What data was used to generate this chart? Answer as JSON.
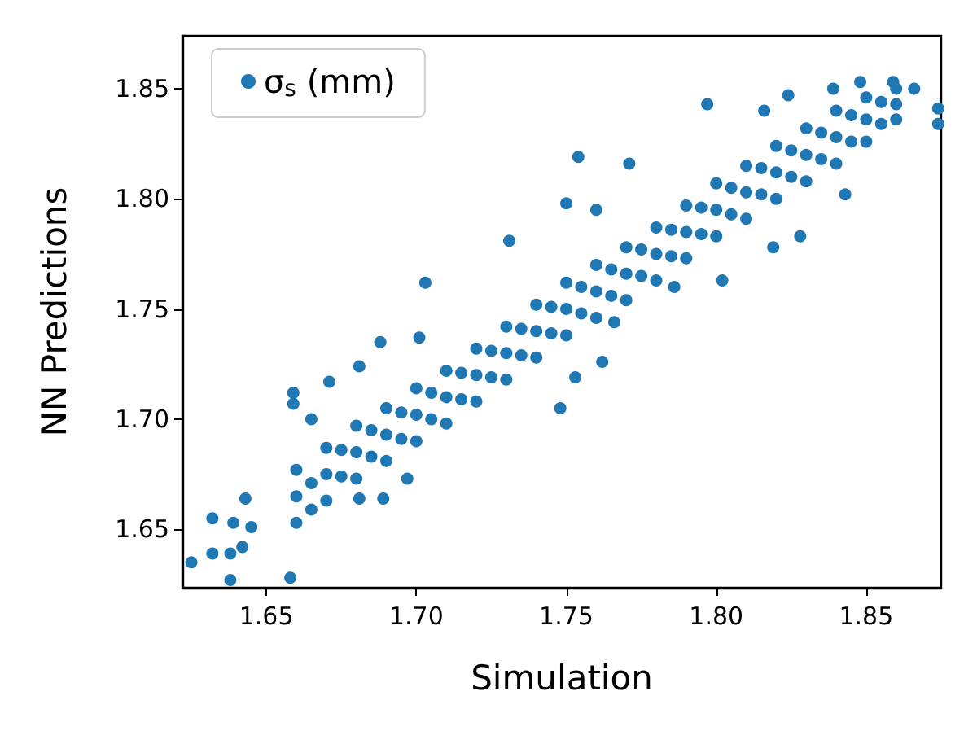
{
  "chart_data": {
    "type": "scatter",
    "xlabel": "Simulation",
    "ylabel": "NN Predictions",
    "xlim": [
      1.622,
      1.875
    ],
    "xticks": [
      1.65,
      {
        "value": 1.7,
        "label": "1.70"
      },
      1.75,
      {
        "value": 1.8,
        "label": "1.80"
      },
      1.85
    ],
    "ylim": [
      1.6235,
      1.874
    ],
    "yticks": [
      1.65,
      {
        "value": 1.7,
        "label": "1.70"
      },
      1.75,
      {
        "value": 1.8,
        "label": "1.80"
      },
      1.85
    ],
    "grid": false,
    "legend": "top left",
    "marker": "circle",
    "series": [
      {
        "name": "σ$_{s}$ (mm)",
        "color": "#1f77b4",
        "x": [
          1.66,
          1.66,
          1.66,
          1.665,
          1.665,
          1.67,
          1.67,
          1.67,
          1.675,
          1.675,
          1.68,
          1.68,
          1.68,
          1.685,
          1.685,
          1.69,
          1.69,
          1.69,
          1.695,
          1.695,
          1.7,
          1.7,
          1.7,
          1.705,
          1.705,
          1.71,
          1.71,
          1.71,
          1.715,
          1.715,
          1.72,
          1.72,
          1.72,
          1.725,
          1.725,
          1.73,
          1.73,
          1.73,
          1.735,
          1.735,
          1.74,
          1.74,
          1.74,
          1.745,
          1.745,
          1.75,
          1.75,
          1.75,
          1.755,
          1.755,
          1.76,
          1.76,
          1.76,
          1.765,
          1.765,
          1.77,
          1.77,
          1.77,
          1.775,
          1.775,
          1.78,
          1.78,
          1.78,
          1.785,
          1.785,
          1.79,
          1.79,
          1.79,
          1.795,
          1.795,
          1.8,
          1.8,
          1.8,
          1.805,
          1.805,
          1.81,
          1.81,
          1.81,
          1.815,
          1.815,
          1.82,
          1.82,
          1.82,
          1.825,
          1.825,
          1.83,
          1.83,
          1.83,
          1.835,
          1.835,
          1.84,
          1.84,
          1.84,
          1.845,
          1.845,
          1.85,
          1.85,
          1.85,
          1.855,
          1.855,
          1.86,
          1.86,
          1.86,
          1.625,
          1.632,
          1.632,
          1.638,
          1.638,
          1.642,
          1.658,
          1.639,
          1.659,
          1.659,
          1.665,
          1.703,
          1.748,
          1.689,
          1.697,
          1.681,
          1.671,
          1.681,
          1.688,
          1.701,
          1.645,
          1.643,
          1.762,
          1.753,
          1.766,
          1.786,
          1.802,
          1.754,
          1.75,
          1.797,
          1.843,
          1.828,
          1.819,
          1.874,
          1.874,
          1.866,
          1.859,
          1.848,
          1.839,
          1.824,
          1.816,
          1.771,
          1.76,
          1.731
        ],
        "values": [
          1.665,
          1.677,
          1.653,
          1.671,
          1.659,
          1.675,
          1.687,
          1.663,
          1.686,
          1.674,
          1.685,
          1.697,
          1.673,
          1.695,
          1.683,
          1.693,
          1.705,
          1.681,
          1.703,
          1.691,
          1.702,
          1.714,
          1.69,
          1.712,
          1.7,
          1.71,
          1.722,
          1.698,
          1.721,
          1.709,
          1.72,
          1.732,
          1.708,
          1.731,
          1.719,
          1.73,
          1.742,
          1.718,
          1.741,
          1.729,
          1.74,
          1.752,
          1.728,
          1.751,
          1.739,
          1.75,
          1.762,
          1.738,
          1.76,
          1.748,
          1.758,
          1.77,
          1.746,
          1.768,
          1.756,
          1.766,
          1.778,
          1.754,
          1.777,
          1.765,
          1.775,
          1.787,
          1.763,
          1.786,
          1.774,
          1.785,
          1.797,
          1.773,
          1.796,
          1.784,
          1.795,
          1.807,
          1.783,
          1.805,
          1.793,
          1.803,
          1.815,
          1.791,
          1.814,
          1.802,
          1.812,
          1.824,
          1.8,
          1.822,
          1.81,
          1.82,
          1.832,
          1.808,
          1.83,
          1.818,
          1.828,
          1.84,
          1.816,
          1.838,
          1.826,
          1.836,
          1.846,
          1.826,
          1.844,
          1.834,
          1.843,
          1.85,
          1.836,
          1.635,
          1.639,
          1.655,
          1.627,
          1.639,
          1.642,
          1.628,
          1.653,
          1.712,
          1.707,
          1.7,
          1.762,
          1.705,
          1.664,
          1.673,
          1.664,
          1.717,
          1.724,
          1.735,
          1.737,
          1.651,
          1.664,
          1.726,
          1.719,
          1.744,
          1.76,
          1.763,
          1.819,
          1.798,
          1.843,
          1.802,
          1.783,
          1.778,
          1.841,
          1.834,
          1.85,
          1.853,
          1.853,
          1.85,
          1.847,
          1.84,
          1.816,
          1.795,
          1.781
        ]
      }
    ]
  }
}
